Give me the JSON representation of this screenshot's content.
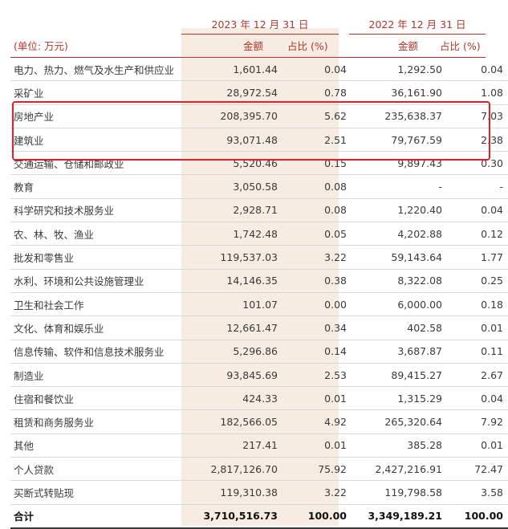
{
  "header": {
    "year_2023": "2023 年 12 月 31 日",
    "year_2022": "2022 年 12 月 31 日",
    "unit": "(单位: 万元)",
    "amount": "金额",
    "ratio": "占比 (%)"
  },
  "rows": [
    {
      "name": "电力、热力、燃气及水生产和供应业",
      "a23": "1,601.44",
      "p23": "0.04",
      "a22": "1,292.50",
      "p22": "0.04"
    },
    {
      "name": "采矿业",
      "a23": "28,972.54",
      "p23": "0.78",
      "a22": "36,161.90",
      "p22": "1.08"
    },
    {
      "name": "房地产业",
      "a23": "208,395.70",
      "p23": "5.62",
      "a22": "235,638.37",
      "p22": "7.03"
    },
    {
      "name": "建筑业",
      "a23": "93,071.48",
      "p23": "2.51",
      "a22": "79,767.59",
      "p22": "2.38"
    },
    {
      "name": "交通运输、仓储和邮政业",
      "a23": "5,520.46",
      "p23": "0.15",
      "a22": "9,897.43",
      "p22": "0.30"
    },
    {
      "name": "教育",
      "a23": "3,050.58",
      "p23": "0.08",
      "a22": "-",
      "p22": "-"
    },
    {
      "name": "科学研究和技术服务业",
      "a23": "2,928.71",
      "p23": "0.08",
      "a22": "1,220.40",
      "p22": "0.04"
    },
    {
      "name": "农、林、牧、渔业",
      "a23": "1,742.48",
      "p23": "0.05",
      "a22": "4,202.88",
      "p22": "0.12"
    },
    {
      "name": "批发和零售业",
      "a23": "119,537.03",
      "p23": "3.22",
      "a22": "59,143.64",
      "p22": "1.77"
    },
    {
      "name": "水利、环境和公共设施管理业",
      "a23": "14,146.35",
      "p23": "0.38",
      "a22": "8,322.08",
      "p22": "0.25"
    },
    {
      "name": "卫生和社会工作",
      "a23": "101.07",
      "p23": "0.00",
      "a22": "6,000.00",
      "p22": "0.18"
    },
    {
      "name": "文化、体育和娱乐业",
      "a23": "12,661.47",
      "p23": "0.34",
      "a22": "402.58",
      "p22": "0.01"
    },
    {
      "name": "信息传输、软件和信息技术服务业",
      "a23": "5,296.86",
      "p23": "0.14",
      "a22": "3,687.87",
      "p22": "0.11"
    },
    {
      "name": "制造业",
      "a23": "93,845.69",
      "p23": "2.53",
      "a22": "89,415.27",
      "p22": "2.67"
    },
    {
      "name": "住宿和餐饮业",
      "a23": "424.33",
      "p23": "0.01",
      "a22": "1,315.29",
      "p22": "0.04"
    },
    {
      "name": "租赁和商务服务业",
      "a23": "182,566.05",
      "p23": "4.92",
      "a22": "265,320.64",
      "p22": "7.92"
    },
    {
      "name": "其他",
      "a23": "217.41",
      "p23": "0.01",
      "a22": "385.28",
      "p22": "0.01"
    },
    {
      "name": "个人贷款",
      "a23": "2,817,126.70",
      "p23": "75.92",
      "a22": "2,427,216.91",
      "p22": "72.47"
    },
    {
      "name": "买断式转贴现",
      "a23": "119,310.38",
      "p23": "3.22",
      "a22": "119,798.58",
      "p22": "3.58"
    }
  ],
  "total": {
    "name": "合计",
    "a23": "3,710,516.73",
    "p23": "100.00",
    "a22": "3,349,189.21",
    "p22": "100.00"
  },
  "highlight_rows": [
    "房地产业",
    "建筑业"
  ],
  "colors": {
    "accent": "#b5352a",
    "shade": "#f6ece2",
    "highlight_box": "#e0202a"
  }
}
